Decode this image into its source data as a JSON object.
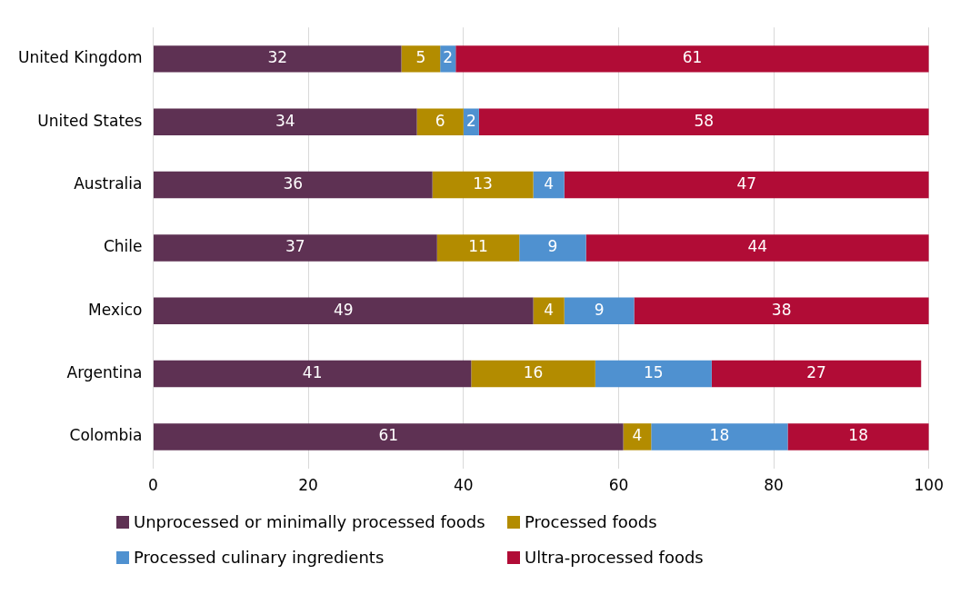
{
  "chart_data": {
    "type": "bar",
    "orientation": "horizontal",
    "stacked": true,
    "categories": [
      "United Kingdom",
      "United States",
      "Australia",
      "Chile",
      "Mexico",
      "Argentina",
      "Colombia"
    ],
    "series": [
      {
        "name": "Unprocessed or minimally processed foods",
        "color": "#5e3153",
        "values": [
          32,
          34,
          36,
          36.6,
          49,
          41,
          60.6
        ],
        "value_labels": [
          "32",
          "34",
          "36",
          "37",
          "49",
          "41",
          "61"
        ]
      },
      {
        "name": "Processed foods",
        "color": "#b38c00",
        "values": [
          5,
          6,
          13,
          10.6,
          4,
          16,
          3.6
        ],
        "value_labels": [
          "5",
          "6",
          "13",
          "11",
          "4",
          "16",
          "4"
        ]
      },
      {
        "name": "Processed culinary ingredients",
        "color": "#4f91d0",
        "values": [
          2,
          2,
          4,
          8.6,
          9,
          15,
          17.6
        ],
        "value_labels": [
          "2",
          "2",
          "4",
          "9",
          "9",
          "15",
          "18"
        ]
      },
      {
        "name": "Ultra-processed foods",
        "color": "#b10c36",
        "values": [
          61,
          58,
          47,
          44.2,
          38,
          27,
          18.2
        ],
        "value_labels": [
          "61",
          "58",
          "47",
          "44",
          "38",
          "27",
          "18"
        ]
      }
    ],
    "xlim": [
      0,
      100
    ],
    "xticks": [
      0,
      20,
      40,
      60,
      80,
      100
    ],
    "grid": "x",
    "legend": "bottom"
  }
}
